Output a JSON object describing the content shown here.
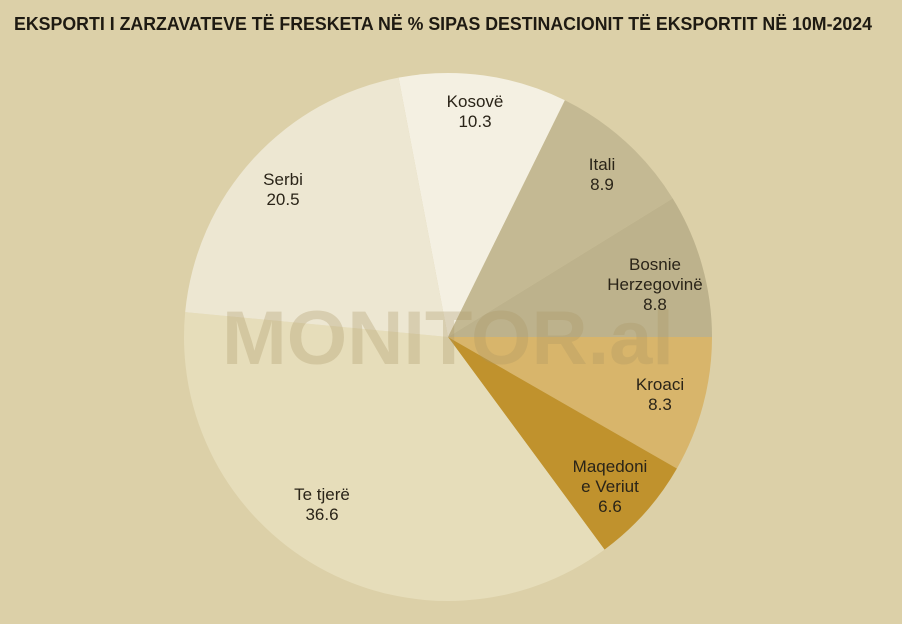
{
  "chart_data": {
    "type": "pie",
    "title": "EKSPORTI I ZARZAVATEVE TË FRESKETA NË % SIPAS DESTINACIONIT TË EKSPORTIT NË 10M-2024",
    "watermark": "MONITOR.al",
    "categories": [
      "Kosovë",
      "Itali",
      "Bosnie\nHerzegovinë",
      "Kroaci",
      "Maqedoni\ne Veriut",
      "Te tjerë",
      "Serbi"
    ],
    "values": [
      10.3,
      8.9,
      8.8,
      8.3,
      6.6,
      36.6,
      20.5
    ],
    "colors": [
      "#f4f0e2",
      "#c4b993",
      "#bdb28c",
      "#d8b56b",
      "#c0922d",
      "#e6ddba",
      "#ede7d2"
    ]
  }
}
